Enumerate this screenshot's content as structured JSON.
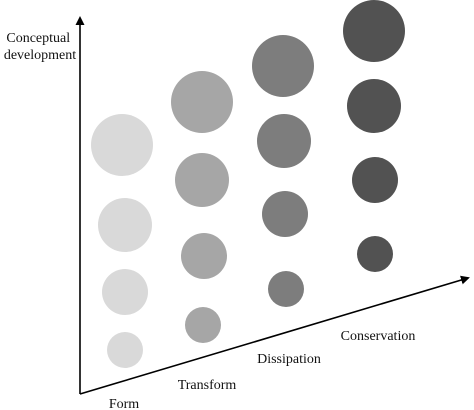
{
  "y_axis_label": [
    "Conceptual",
    "development"
  ],
  "x_categories": [
    "Form",
    "Transform",
    "Dissipation",
    "Conservation"
  ],
  "rows_per_category": 4,
  "colors": {
    "axis": "#000000",
    "circles": [
      "#d9d9d9",
      "#a6a6a6",
      "#7d7d7d",
      "#525252"
    ]
  }
}
